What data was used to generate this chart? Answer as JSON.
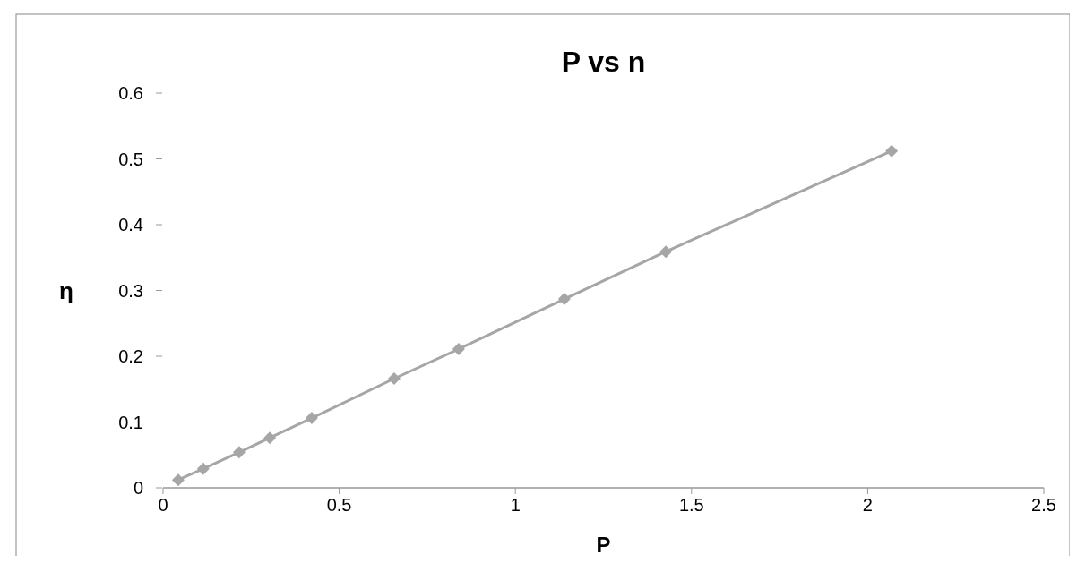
{
  "chart_data": {
    "type": "line",
    "title": "P vs n",
    "xlabel": "P",
    "ylabel": "η",
    "x": [
      0.043,
      0.114,
      0.216,
      0.303,
      0.422,
      0.656,
      0.839,
      1.139,
      1.427,
      2.068
    ],
    "series": [
      {
        "color": "#a6a6a6",
        "values": [
          0.012,
          0.029,
          0.054,
          0.076,
          0.106,
          0.166,
          0.211,
          0.287,
          0.359,
          0.512
        ]
      }
    ],
    "xlim": [
      0,
      2.5
    ],
    "xticks": [
      0,
      0.5,
      1,
      1.5,
      2,
      2.5
    ],
    "ylim": [
      0,
      0.6
    ],
    "yticks": [
      0,
      0.1,
      0.2,
      0.3,
      0.4,
      0.5,
      0.6
    ],
    "marker": "diamond",
    "line_style": "solid",
    "grid": false
  }
}
